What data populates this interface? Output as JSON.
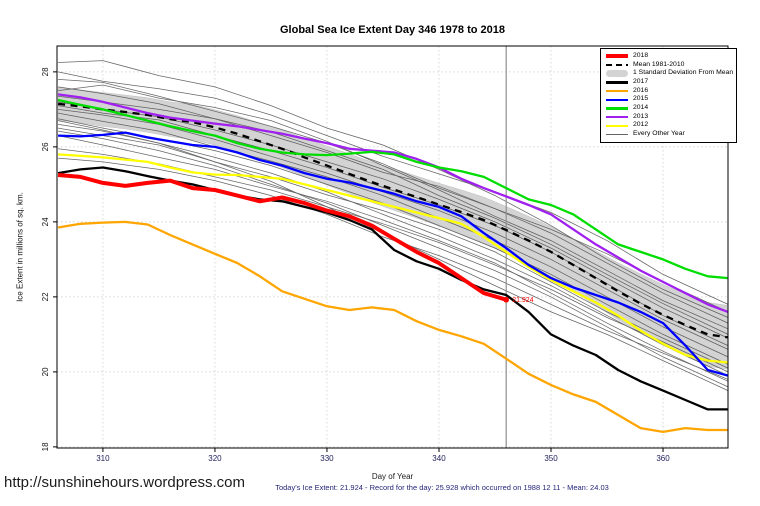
{
  "watermark": "http://sunshinehours.wordpress.com",
  "footer": {
    "subtitle": "Today's Ice Extent: 21.924  - Record for the day: 25.928 which occurred on 1988 12 11  - Mean: 24.03"
  },
  "legend": {
    "entries": [
      {
        "label": "2018",
        "color": "#ff0000",
        "lw": 4,
        "style": "solid"
      },
      {
        "label": "Mean 1981-2010",
        "color": "#000000",
        "lw": 2.5,
        "style": "dashed"
      },
      {
        "label": "1 Standard Deviation From Mean",
        "color": "#d3d3d3",
        "lw": 7,
        "style": "band"
      },
      {
        "label": "2017",
        "color": "#000000",
        "lw": 2.5,
        "style": "solid"
      },
      {
        "label": "2016",
        "color": "#ffa500",
        "lw": 2.5,
        "style": "solid"
      },
      {
        "label": "2015",
        "color": "#0000ff",
        "lw": 2.5,
        "style": "solid"
      },
      {
        "label": "2014",
        "color": "#00dd00",
        "lw": 2.5,
        "style": "solid"
      },
      {
        "label": "2013",
        "color": "#a020f0",
        "lw": 2.5,
        "style": "solid"
      },
      {
        "label": "2012",
        "color": "#ffff00",
        "lw": 2.5,
        "style": "solid"
      },
      {
        "label": "Every Other Year",
        "color": "#666666",
        "lw": 1,
        "style": "solid"
      }
    ]
  },
  "chart_data": {
    "type": "line",
    "title": "Global Sea Ice Extent Day 346 1978 to 2018",
    "xlabel": "Day of Year",
    "ylabel": "Ice Extent in millions of sq. km.",
    "xlim": [
      305.9,
      365.8
    ],
    "ylim": [
      17.97,
      28.69
    ],
    "x_ticks": [
      310,
      320,
      330,
      340,
      350,
      360
    ],
    "y_ticks": [
      18,
      20,
      22,
      24,
      26,
      28
    ],
    "grid": true,
    "legend_position": "top-right",
    "marker_line_x": 346,
    "annotation": {
      "x": 346,
      "y": 21.924,
      "label": "21.924",
      "color": "#ff0000"
    },
    "band": {
      "name": "1 Standard Deviation From Mean",
      "color": "#d3d3d3",
      "x": [
        306,
        308,
        310,
        312,
        314,
        316,
        318,
        320,
        322,
        324,
        326,
        328,
        330,
        332,
        334,
        336,
        338,
        340,
        342,
        344,
        346,
        348,
        350,
        352,
        354,
        356,
        358,
        360,
        362,
        364,
        365.8
      ],
      "mean": [
        27.15,
        27.08,
        27.0,
        26.93,
        26.85,
        26.74,
        26.66,
        26.52,
        26.35,
        26.15,
        25.95,
        25.72,
        25.5,
        25.28,
        25.06,
        24.86,
        24.66,
        24.46,
        24.26,
        24.05,
        23.78,
        23.5,
        23.2,
        22.85,
        22.5,
        22.15,
        21.82,
        21.52,
        21.25,
        21.0,
        20.92
      ],
      "halfwidth": [
        0.44,
        0.44,
        0.45,
        0.45,
        0.46,
        0.46,
        0.47,
        0.47,
        0.48,
        0.49,
        0.5,
        0.51,
        0.52,
        0.53,
        0.54,
        0.55,
        0.56,
        0.57,
        0.59,
        0.61,
        0.63,
        0.65,
        0.67,
        0.7,
        0.73,
        0.76,
        0.79,
        0.81,
        0.83,
        0.85,
        0.85
      ]
    },
    "series": [
      {
        "name": "Mean 1981-2010",
        "color": "#000000",
        "width": 2.3,
        "dash": true,
        "x": [
          306,
          308,
          310,
          312,
          314,
          316,
          318,
          320,
          322,
          324,
          326,
          328,
          330,
          332,
          334,
          336,
          338,
          340,
          342,
          344,
          346,
          348,
          350,
          352,
          354,
          356,
          358,
          360,
          362,
          364,
          365.8
        ],
        "y": [
          27.15,
          27.08,
          27.0,
          26.93,
          26.85,
          26.74,
          26.66,
          26.52,
          26.35,
          26.15,
          25.95,
          25.72,
          25.5,
          25.28,
          25.06,
          24.86,
          24.66,
          24.46,
          24.26,
          24.05,
          23.78,
          23.5,
          23.2,
          22.85,
          22.5,
          22.15,
          21.82,
          21.52,
          21.25,
          21.0,
          20.92
        ]
      },
      {
        "name": "2012",
        "color": "#ffff00",
        "width": 2.3,
        "dash": false,
        "x": [
          306,
          308,
          310,
          312,
          314,
          316,
          318,
          320,
          322,
          324,
          326,
          328,
          330,
          332,
          334,
          336,
          338,
          340,
          342,
          344,
          346,
          348,
          350,
          352,
          354,
          356,
          358,
          360,
          362,
          364,
          365.8
        ],
        "y": [
          25.8,
          25.76,
          25.72,
          25.66,
          25.6,
          25.45,
          25.32,
          25.26,
          25.25,
          25.2,
          25.15,
          25.0,
          24.85,
          24.7,
          24.55,
          24.4,
          24.25,
          24.1,
          23.95,
          23.6,
          23.2,
          22.8,
          22.45,
          22.15,
          21.85,
          21.5,
          21.1,
          20.75,
          20.45,
          20.3,
          20.25
        ]
      },
      {
        "name": "2013",
        "color": "#a020f0",
        "width": 2.3,
        "dash": false,
        "x": [
          306,
          308,
          310,
          312,
          314,
          316,
          318,
          320,
          322,
          324,
          326,
          328,
          330,
          332,
          334,
          336,
          338,
          340,
          342,
          344,
          346,
          348,
          350,
          352,
          354,
          356,
          358,
          360,
          362,
          364,
          365.8
        ],
        "y": [
          27.4,
          27.32,
          27.2,
          27.05,
          26.9,
          26.78,
          26.7,
          26.62,
          26.55,
          26.45,
          26.35,
          26.22,
          26.1,
          25.95,
          25.9,
          25.85,
          25.68,
          25.45,
          25.15,
          24.9,
          24.68,
          24.45,
          24.2,
          23.8,
          23.4,
          23.05,
          22.7,
          22.4,
          22.1,
          21.8,
          21.6
        ]
      },
      {
        "name": "2014",
        "color": "#00dd00",
        "width": 2.3,
        "dash": false,
        "x": [
          306,
          308,
          310,
          312,
          314,
          316,
          318,
          320,
          322,
          324,
          326,
          328,
          330,
          332,
          334,
          336,
          338,
          340,
          342,
          344,
          346,
          348,
          350,
          352,
          354,
          356,
          358,
          360,
          362,
          364,
          365.8
        ],
        "y": [
          27.25,
          27.12,
          27.0,
          26.85,
          26.7,
          26.55,
          26.42,
          26.3,
          26.1,
          25.95,
          25.85,
          25.8,
          25.78,
          25.82,
          25.87,
          25.8,
          25.6,
          25.45,
          25.35,
          25.2,
          24.9,
          24.6,
          24.45,
          24.2,
          23.8,
          23.4,
          23.2,
          23.0,
          22.75,
          22.55,
          22.5
        ]
      },
      {
        "name": "2015",
        "color": "#0000ff",
        "width": 2.3,
        "dash": false,
        "x": [
          306,
          308,
          310,
          312,
          314,
          316,
          318,
          320,
          322,
          324,
          326,
          328,
          330,
          332,
          334,
          336,
          338,
          340,
          342,
          344,
          346,
          348,
          350,
          352,
          354,
          356,
          358,
          360,
          362,
          364,
          365.8
        ],
        "y": [
          26.3,
          26.28,
          26.32,
          26.38,
          26.25,
          26.15,
          26.05,
          26.0,
          25.85,
          25.65,
          25.5,
          25.3,
          25.15,
          25.05,
          24.9,
          24.75,
          24.55,
          24.4,
          24.15,
          23.7,
          23.3,
          22.85,
          22.5,
          22.25,
          22.05,
          21.85,
          21.6,
          21.3,
          20.7,
          20.05,
          19.9
        ]
      },
      {
        "name": "2016",
        "color": "#ffa500",
        "width": 2.3,
        "dash": false,
        "x": [
          306,
          308,
          310,
          312,
          314,
          316,
          318,
          320,
          322,
          324,
          326,
          328,
          330,
          332,
          334,
          336,
          338,
          340,
          342,
          344,
          346,
          348,
          350,
          352,
          354,
          356,
          358,
          360,
          362,
          364,
          365.8
        ],
        "y": [
          23.85,
          23.95,
          23.98,
          24.0,
          23.93,
          23.65,
          23.4,
          23.15,
          22.9,
          22.55,
          22.15,
          21.95,
          21.75,
          21.65,
          21.72,
          21.65,
          21.35,
          21.12,
          20.95,
          20.75,
          20.35,
          19.95,
          19.65,
          19.4,
          19.2,
          18.85,
          18.5,
          18.4,
          18.5,
          18.45,
          18.45
        ]
      },
      {
        "name": "2017",
        "color": "#000000",
        "width": 2.3,
        "dash": false,
        "x": [
          306,
          308,
          310,
          312,
          314,
          316,
          318,
          320,
          322,
          324,
          326,
          328,
          330,
          332,
          334,
          336,
          338,
          340,
          342,
          344,
          346,
          348,
          350,
          352,
          354,
          356,
          358,
          360,
          362,
          364,
          365.8
        ],
        "y": [
          25.3,
          25.4,
          25.45,
          25.35,
          25.22,
          25.1,
          25.0,
          24.85,
          24.7,
          24.6,
          24.55,
          24.4,
          24.25,
          24.05,
          23.8,
          23.25,
          22.95,
          22.75,
          22.45,
          22.2,
          22.05,
          21.6,
          21.0,
          20.7,
          20.45,
          20.05,
          19.75,
          19.5,
          19.25,
          19.0,
          19.0
        ]
      },
      {
        "name": "2018",
        "color": "#ff0000",
        "width": 4,
        "dash": false,
        "x": [
          306,
          308,
          310,
          312,
          314,
          316,
          318,
          320,
          322,
          324,
          326,
          328,
          330,
          332,
          334,
          336,
          338,
          340,
          342,
          344,
          346
        ],
        "y": [
          25.25,
          25.2,
          25.04,
          24.96,
          25.04,
          25.1,
          24.9,
          24.85,
          24.7,
          24.55,
          24.65,
          24.5,
          24.3,
          24.15,
          23.9,
          23.55,
          23.2,
          22.9,
          22.5,
          22.1,
          21.924
        ]
      }
    ],
    "every_other_year": {
      "name": "Every Other Year",
      "color": "#4d4d4d",
      "x": [
        306,
        310,
        315,
        320,
        325,
        330,
        335,
        340,
        345,
        350,
        355,
        360,
        365.8
      ],
      "lines": [
        [
          28.25,
          28.3,
          27.9,
          27.6,
          27.1,
          26.5,
          26.05,
          25.4,
          24.7,
          23.9,
          23.0,
          22.2,
          21.45
        ],
        [
          28.0,
          27.75,
          27.55,
          27.3,
          26.85,
          26.3,
          25.75,
          25.28,
          24.8,
          24.25,
          23.5,
          22.6,
          21.8
        ],
        [
          27.8,
          27.72,
          27.35,
          26.95,
          26.55,
          26.1,
          25.55,
          24.9,
          24.35,
          23.8,
          23.15,
          22.4,
          21.6
        ],
        [
          27.5,
          27.65,
          27.3,
          27.05,
          26.7,
          26.15,
          25.5,
          24.85,
          24.15,
          23.5,
          22.7,
          21.9,
          21.15
        ],
        [
          27.35,
          27.2,
          27.0,
          26.75,
          26.3,
          25.85,
          25.32,
          24.95,
          24.35,
          23.7,
          22.9,
          22.1,
          21.3
        ],
        [
          27.2,
          27.0,
          26.8,
          26.45,
          26.05,
          25.6,
          25.15,
          24.6,
          24.0,
          23.3,
          22.5,
          21.7,
          20.9
        ],
        [
          27.1,
          26.9,
          26.72,
          26.3,
          25.9,
          25.45,
          24.92,
          24.45,
          23.9,
          23.2,
          22.35,
          21.5,
          20.7
        ],
        [
          27.0,
          26.85,
          26.6,
          26.2,
          25.75,
          25.3,
          24.8,
          24.3,
          23.7,
          23.0,
          22.2,
          21.4,
          20.6
        ],
        [
          26.9,
          26.68,
          26.42,
          26.0,
          25.62,
          25.2,
          24.7,
          24.1,
          23.5,
          22.8,
          22.0,
          21.2,
          20.4
        ],
        [
          26.75,
          26.5,
          26.22,
          25.9,
          25.5,
          25.0,
          24.5,
          23.9,
          23.3,
          22.6,
          21.8,
          21.0,
          20.2
        ],
        [
          26.6,
          26.42,
          26.1,
          25.72,
          25.3,
          24.8,
          24.2,
          23.62,
          23.0,
          22.3,
          21.5,
          20.72,
          19.9
        ],
        [
          26.42,
          26.22,
          25.9,
          25.5,
          25.0,
          24.5,
          23.9,
          23.3,
          22.7,
          22.0,
          21.2,
          20.4,
          19.6
        ],
        [
          26.5,
          26.3,
          26.05,
          25.6,
          25.2,
          24.72,
          24.3,
          23.8,
          23.2,
          22.4,
          21.6,
          20.9,
          20.1
        ],
        [
          27.6,
          27.42,
          27.15,
          26.75,
          26.4,
          25.9,
          25.4,
          24.7,
          24.1,
          23.4,
          22.6,
          21.82,
          21.0
        ],
        [
          26.7,
          26.45,
          26.1,
          25.6,
          25.08,
          24.4,
          23.7,
          23.0,
          22.3,
          21.6,
          21.0,
          20.3,
          19.5
        ],
        [
          26.3,
          26.05,
          25.72,
          25.4,
          24.95,
          24.55,
          24.05,
          23.5,
          22.9,
          22.1,
          21.3,
          20.55,
          19.75
        ],
        [
          25.95,
          25.8,
          25.55,
          25.2,
          24.85,
          24.4,
          23.95,
          23.45,
          22.85,
          22.2,
          21.45,
          20.8,
          20.0
        ],
        [
          25.7,
          25.6,
          25.4,
          25.1,
          24.7,
          24.2,
          23.6,
          23.1,
          22.5,
          21.8,
          21.1,
          20.5,
          19.8
        ]
      ]
    }
  }
}
